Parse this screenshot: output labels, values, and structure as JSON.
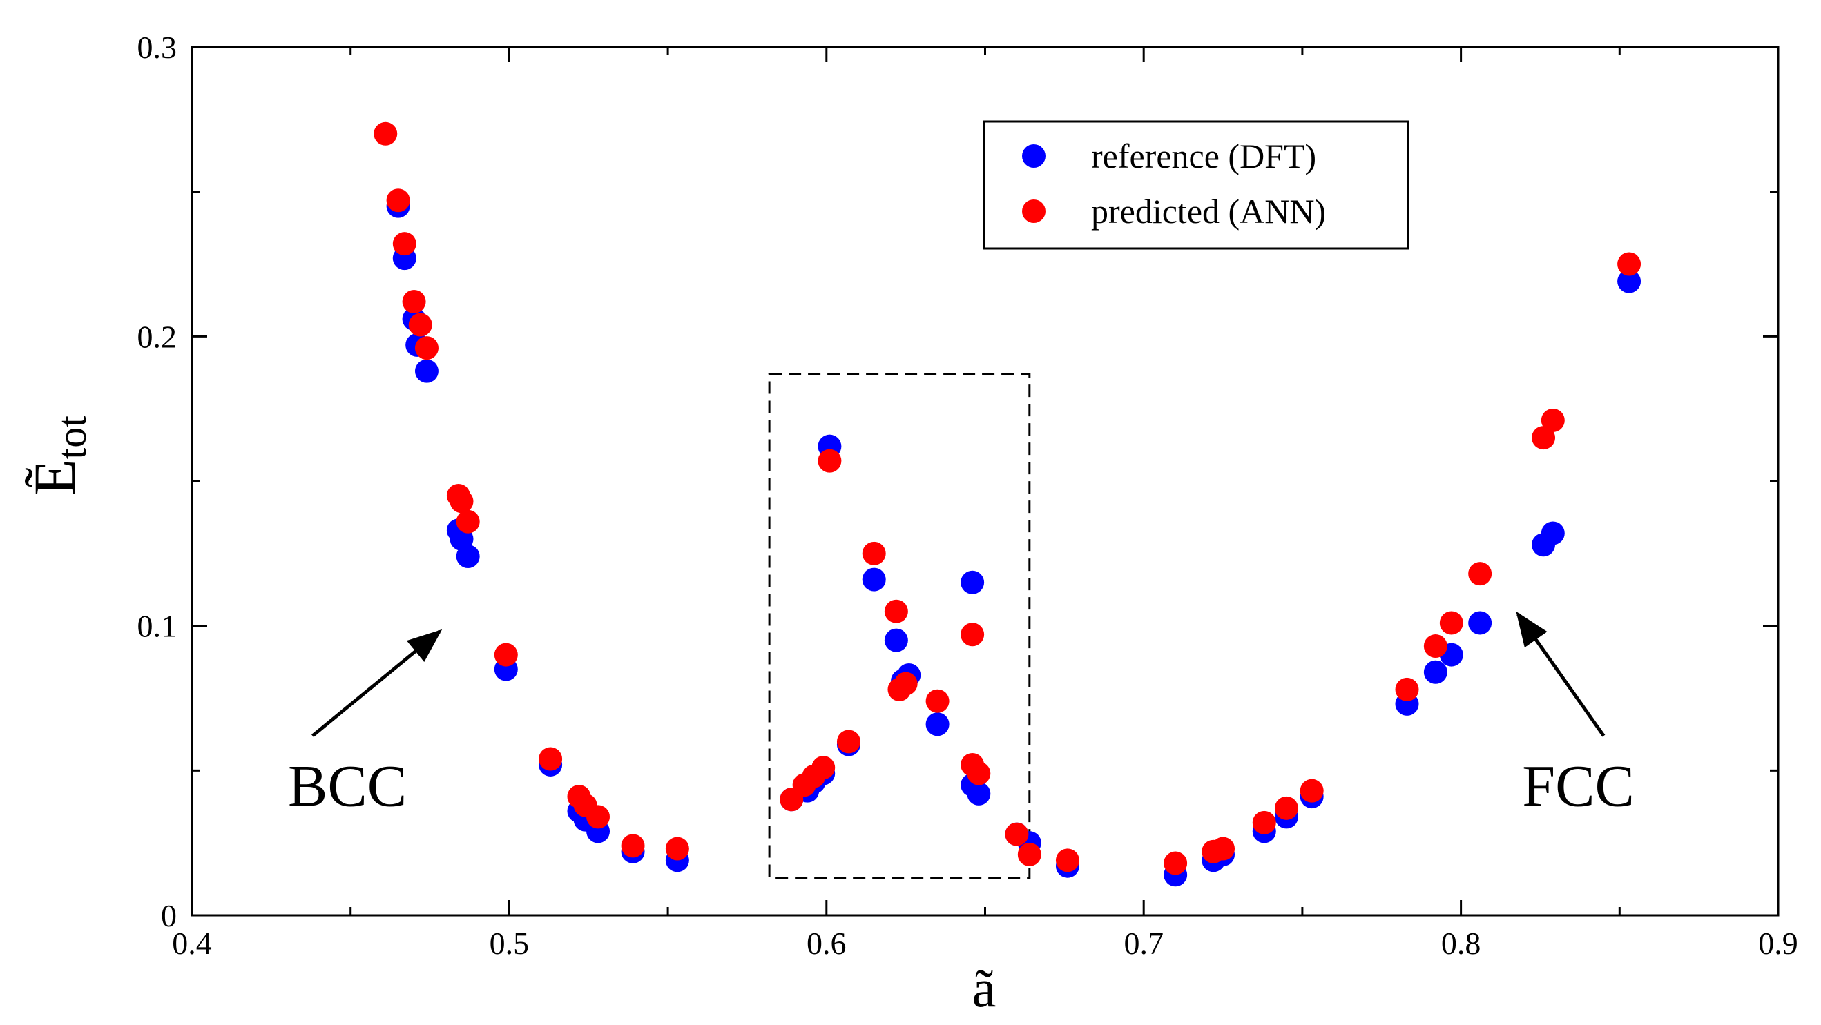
{
  "chart_data": {
    "type": "scatter",
    "title": "",
    "xlabel": "ã",
    "ylabel": {
      "main": "Ẽ",
      "sub": "tot"
    },
    "xlim": [
      0.4,
      0.9
    ],
    "ylim": [
      0,
      0.3
    ],
    "xticks": [
      "0.4",
      "0.5",
      "0.6",
      "0.7",
      "0.8",
      "0.9"
    ],
    "yticks": [
      "0",
      "0.1",
      "0.2",
      "0.3"
    ],
    "xtick_values": [
      0.4,
      0.5,
      0.6,
      0.7,
      0.8,
      0.9
    ],
    "ytick_values": [
      0,
      0.1,
      0.2,
      0.3
    ],
    "grid": false,
    "legend_position": "top-right",
    "series": [
      {
        "name": "reference (DFT)",
        "color": "#0000ff",
        "points": [
          [
            0.465,
            0.245
          ],
          [
            0.467,
            0.227
          ],
          [
            0.47,
            0.206
          ],
          [
            0.471,
            0.197
          ],
          [
            0.474,
            0.188
          ],
          [
            0.484,
            0.133
          ],
          [
            0.485,
            0.13
          ],
          [
            0.487,
            0.124
          ],
          [
            0.499,
            0.085
          ],
          [
            0.513,
            0.052
          ],
          [
            0.522,
            0.036
          ],
          [
            0.524,
            0.033
          ],
          [
            0.528,
            0.029
          ],
          [
            0.539,
            0.022
          ],
          [
            0.553,
            0.019
          ],
          [
            0.589,
            0.04
          ],
          [
            0.594,
            0.043
          ],
          [
            0.596,
            0.046
          ],
          [
            0.599,
            0.049
          ],
          [
            0.601,
            0.162
          ],
          [
            0.607,
            0.059
          ],
          [
            0.615,
            0.116
          ],
          [
            0.622,
            0.095
          ],
          [
            0.624,
            0.081
          ],
          [
            0.626,
            0.083
          ],
          [
            0.635,
            0.066
          ],
          [
            0.646,
            0.115
          ],
          [
            0.646,
            0.045
          ],
          [
            0.648,
            0.042
          ],
          [
            0.66,
            0.028
          ],
          [
            0.664,
            0.025
          ],
          [
            0.676,
            0.017
          ],
          [
            0.71,
            0.014
          ],
          [
            0.722,
            0.019
          ],
          [
            0.725,
            0.021
          ],
          [
            0.738,
            0.029
          ],
          [
            0.745,
            0.034
          ],
          [
            0.753,
            0.041
          ],
          [
            0.783,
            0.073
          ],
          [
            0.792,
            0.084
          ],
          [
            0.797,
            0.09
          ],
          [
            0.806,
            0.101
          ],
          [
            0.826,
            0.128
          ],
          [
            0.829,
            0.132
          ],
          [
            0.853,
            0.219
          ]
        ]
      },
      {
        "name": "predicted (ANN)",
        "color": "#ff0000",
        "points": [
          [
            0.461,
            0.27
          ],
          [
            0.465,
            0.247
          ],
          [
            0.467,
            0.232
          ],
          [
            0.47,
            0.212
          ],
          [
            0.472,
            0.204
          ],
          [
            0.474,
            0.196
          ],
          [
            0.484,
            0.145
          ],
          [
            0.485,
            0.143
          ],
          [
            0.487,
            0.136
          ],
          [
            0.499,
            0.09
          ],
          [
            0.513,
            0.054
          ],
          [
            0.522,
            0.041
          ],
          [
            0.524,
            0.038
          ],
          [
            0.528,
            0.034
          ],
          [
            0.539,
            0.024
          ],
          [
            0.553,
            0.023
          ],
          [
            0.589,
            0.04
          ],
          [
            0.593,
            0.045
          ],
          [
            0.596,
            0.048
          ],
          [
            0.599,
            0.051
          ],
          [
            0.601,
            0.157
          ],
          [
            0.607,
            0.06
          ],
          [
            0.615,
            0.125
          ],
          [
            0.622,
            0.105
          ],
          [
            0.623,
            0.078
          ],
          [
            0.625,
            0.08
          ],
          [
            0.635,
            0.074
          ],
          [
            0.646,
            0.097
          ],
          [
            0.646,
            0.052
          ],
          [
            0.648,
            0.049
          ],
          [
            0.66,
            0.028
          ],
          [
            0.664,
            0.021
          ],
          [
            0.676,
            0.019
          ],
          [
            0.71,
            0.018
          ],
          [
            0.722,
            0.022
          ],
          [
            0.725,
            0.023
          ],
          [
            0.738,
            0.032
          ],
          [
            0.745,
            0.037
          ],
          [
            0.753,
            0.043
          ],
          [
            0.783,
            0.078
          ],
          [
            0.792,
            0.093
          ],
          [
            0.797,
            0.101
          ],
          [
            0.806,
            0.118
          ],
          [
            0.826,
            0.165
          ],
          [
            0.829,
            0.171
          ],
          [
            0.853,
            0.225
          ]
        ]
      }
    ],
    "highlight_box": {
      "x": [
        0.582,
        0.664
      ],
      "y": [
        0.013,
        0.187
      ],
      "style": "dashed"
    },
    "annotations": [
      {
        "text": "BCC",
        "text_at": [
          0.449,
          0.045
        ],
        "arrow_from": [
          0.438,
          0.062
        ],
        "arrow_to": [
          0.478,
          0.098
        ]
      },
      {
        "text": "FCC",
        "text_at": [
          0.837,
          0.045
        ],
        "arrow_from": [
          0.845,
          0.062
        ],
        "arrow_to": [
          0.818,
          0.104
        ]
      }
    ]
  }
}
